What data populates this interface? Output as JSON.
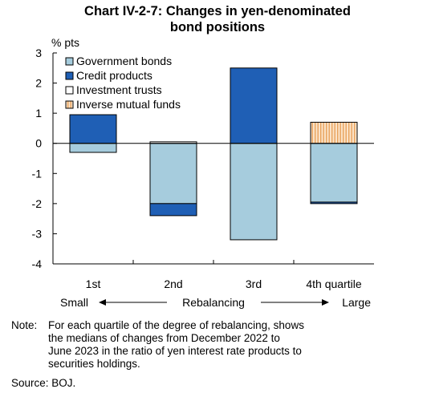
{
  "title_line1": "Chart IV-2-7: Changes in yen-denominated",
  "title_line2": "bond positions",
  "chart_data": {
    "type": "bar",
    "stacked": true,
    "ylabel": "% pts",
    "ylim": [
      -4,
      3
    ],
    "yticks": [
      "3",
      "2",
      "1",
      "0",
      "-1",
      "-2",
      "-3",
      "-4"
    ],
    "categories": [
      "1st",
      "2nd",
      "3rd",
      "4th quartile"
    ],
    "series": [
      {
        "name": "Government bonds",
        "color": "#a6ccdd",
        "values": [
          -0.3,
          -2.0,
          -3.2,
          -1.95
        ]
      },
      {
        "name": "Credit products",
        "color": "#1f5fb5",
        "values": [
          0.95,
          -0.4,
          2.5,
          -0.05
        ]
      },
      {
        "name": "Investment trusts",
        "color": "#ffffff",
        "values": [
          0,
          0.05,
          0,
          0
        ]
      },
      {
        "name": "Inverse mutual funds",
        "color": "#f5c89a",
        "pattern": "vertical-stripes",
        "values": [
          0,
          0,
          0,
          0.7
        ]
      }
    ],
    "legend_position": "top-left",
    "grid": false,
    "axis_note": {
      "left": "Small",
      "center": "Rebalancing",
      "right": "Large"
    }
  },
  "note": {
    "label": "Note:",
    "lines": [
      "For each quartile of the degree of rebalancing, shows",
      "the medians of changes from December 2022 to",
      "June 2023 in the ratio of yen interest rate products to",
      "securities holdings."
    ]
  },
  "source": "Source: BOJ."
}
